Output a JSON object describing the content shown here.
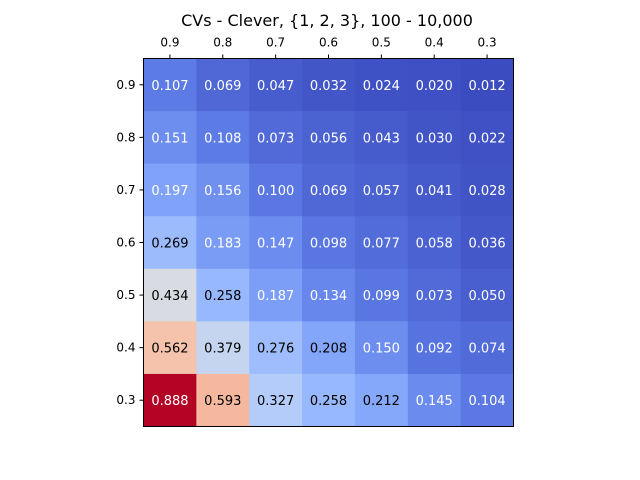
{
  "chart_data": {
    "type": "heatmap",
    "title": "CVs - Clever, {1, 2, 3}, 100 - 10,000",
    "x_ticks": [
      "0.9",
      "0.8",
      "0.7",
      "0.6",
      "0.5",
      "0.4",
      "0.3"
    ],
    "y_ticks": [
      "0.9",
      "0.8",
      "0.7",
      "0.6",
      "0.5",
      "0.4",
      "0.3"
    ],
    "x_axis_position": "top",
    "colormap": "coolwarm",
    "color_range": [
      0.012,
      0.888
    ],
    "grid": false,
    "values": [
      [
        0.107,
        0.069,
        0.047,
        0.032,
        0.024,
        0.02,
        0.012
      ],
      [
        0.151,
        0.108,
        0.073,
        0.056,
        0.043,
        0.03,
        0.022
      ],
      [
        0.197,
        0.156,
        0.1,
        0.069,
        0.057,
        0.041,
        0.028
      ],
      [
        0.269,
        0.183,
        0.147,
        0.098,
        0.077,
        0.058,
        0.036
      ],
      [
        0.434,
        0.258,
        0.187,
        0.134,
        0.099,
        0.073,
        0.05
      ],
      [
        0.562,
        0.379,
        0.276,
        0.208,
        0.15,
        0.092,
        0.074
      ],
      [
        0.888,
        0.593,
        0.327,
        0.258,
        0.212,
        0.145,
        0.104
      ]
    ],
    "labels": [
      [
        "0.107",
        "0.069",
        "0.047",
        "0.032",
        "0.024",
        "0.020",
        "0.012"
      ],
      [
        "0.151",
        "0.108",
        "0.073",
        "0.056",
        "0.043",
        "0.030",
        "0.022"
      ],
      [
        "0.197",
        "0.156",
        "0.100",
        "0.069",
        "0.057",
        "0.041",
        "0.028"
      ],
      [
        "0.269",
        "0.183",
        "0.147",
        "0.098",
        "0.077",
        "0.058",
        "0.036"
      ],
      [
        "0.434",
        "0.258",
        "0.187",
        "0.134",
        "0.099",
        "0.073",
        "0.050"
      ],
      [
        "0.562",
        "0.379",
        "0.276",
        "0.208",
        "0.150",
        "0.092",
        "0.074"
      ],
      [
        "0.888",
        "0.593",
        "0.327",
        "0.258",
        "0.212",
        "0.145",
        "0.104"
      ]
    ]
  }
}
